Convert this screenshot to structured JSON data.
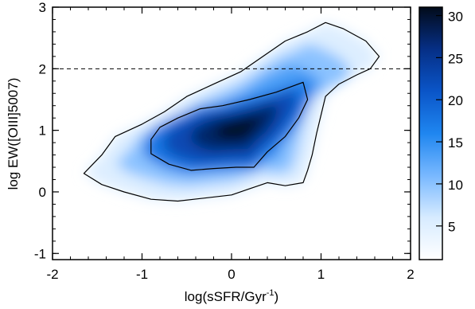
{
  "chart_data": {
    "type": "heatmap",
    "title": "",
    "xlabel": "log(sSFR/Gyr",
    "xlabel_superscript": "-1",
    "xlabel_suffix": ")",
    "ylabel": "log EW([OIII]5007)",
    "xlim": [
      -2,
      2
    ],
    "ylim": [
      -1.1,
      3
    ],
    "x_ticks": [
      "-2",
      "-1",
      "0",
      "1",
      "2"
    ],
    "y_ticks": [
      "-1",
      "0",
      "1",
      "2",
      "3"
    ],
    "colorbar": {
      "range": [
        1,
        31
      ],
      "ticks": [
        "5",
        "10",
        "15",
        "20",
        "25",
        "30"
      ],
      "colormap": [
        "#ffffff",
        "#d7ebff",
        "#78b8ff",
        "#1f86f0",
        "#0a55c8",
        "#062f86",
        "#020b1a"
      ]
    },
    "reference_line": {
      "y": 2.0,
      "style": "dashed"
    },
    "density_peak": {
      "x": 0.1,
      "y": 1.05,
      "value": 30
    },
    "contours": [
      {
        "level": "outer",
        "points": [
          [
            -1.65,
            0.3
          ],
          [
            -1.45,
            0.6
          ],
          [
            -1.3,
            0.9
          ],
          [
            -1.0,
            1.1
          ],
          [
            -0.75,
            1.3
          ],
          [
            -0.5,
            1.55
          ],
          [
            -0.2,
            1.75
          ],
          [
            0.1,
            1.95
          ],
          [
            0.35,
            2.2
          ],
          [
            0.6,
            2.45
          ],
          [
            0.85,
            2.6
          ],
          [
            1.05,
            2.75
          ],
          [
            1.25,
            2.65
          ],
          [
            1.5,
            2.45
          ],
          [
            1.65,
            2.2
          ],
          [
            1.55,
            2.0
          ],
          [
            1.4,
            1.9
          ],
          [
            1.2,
            1.75
          ],
          [
            1.05,
            1.55
          ],
          [
            1.0,
            1.25
          ],
          [
            0.95,
            0.95
          ],
          [
            0.9,
            0.6
          ],
          [
            0.85,
            0.35
          ],
          [
            0.8,
            0.15
          ],
          [
            0.6,
            0.1
          ],
          [
            0.4,
            0.15
          ],
          [
            0.2,
            0.05
          ],
          [
            0.0,
            -0.05
          ],
          [
            -0.3,
            -0.1
          ],
          [
            -0.6,
            -0.15
          ],
          [
            -0.9,
            -0.12
          ],
          [
            -1.2,
            0.0
          ],
          [
            -1.45,
            0.12
          ]
        ]
      },
      {
        "level": "inner",
        "points": [
          [
            -0.9,
            0.85
          ],
          [
            -0.8,
            1.05
          ],
          [
            -0.6,
            1.2
          ],
          [
            -0.35,
            1.35
          ],
          [
            -0.1,
            1.4
          ],
          [
            0.2,
            1.5
          ],
          [
            0.5,
            1.62
          ],
          [
            0.8,
            1.78
          ],
          [
            0.85,
            1.5
          ],
          [
            0.75,
            1.2
          ],
          [
            0.6,
            0.9
          ],
          [
            0.4,
            0.65
          ],
          [
            0.25,
            0.4
          ],
          [
            0.05,
            0.4
          ],
          [
            -0.2,
            0.38
          ],
          [
            -0.45,
            0.35
          ],
          [
            -0.7,
            0.45
          ],
          [
            -0.9,
            0.62
          ]
        ]
      }
    ]
  }
}
